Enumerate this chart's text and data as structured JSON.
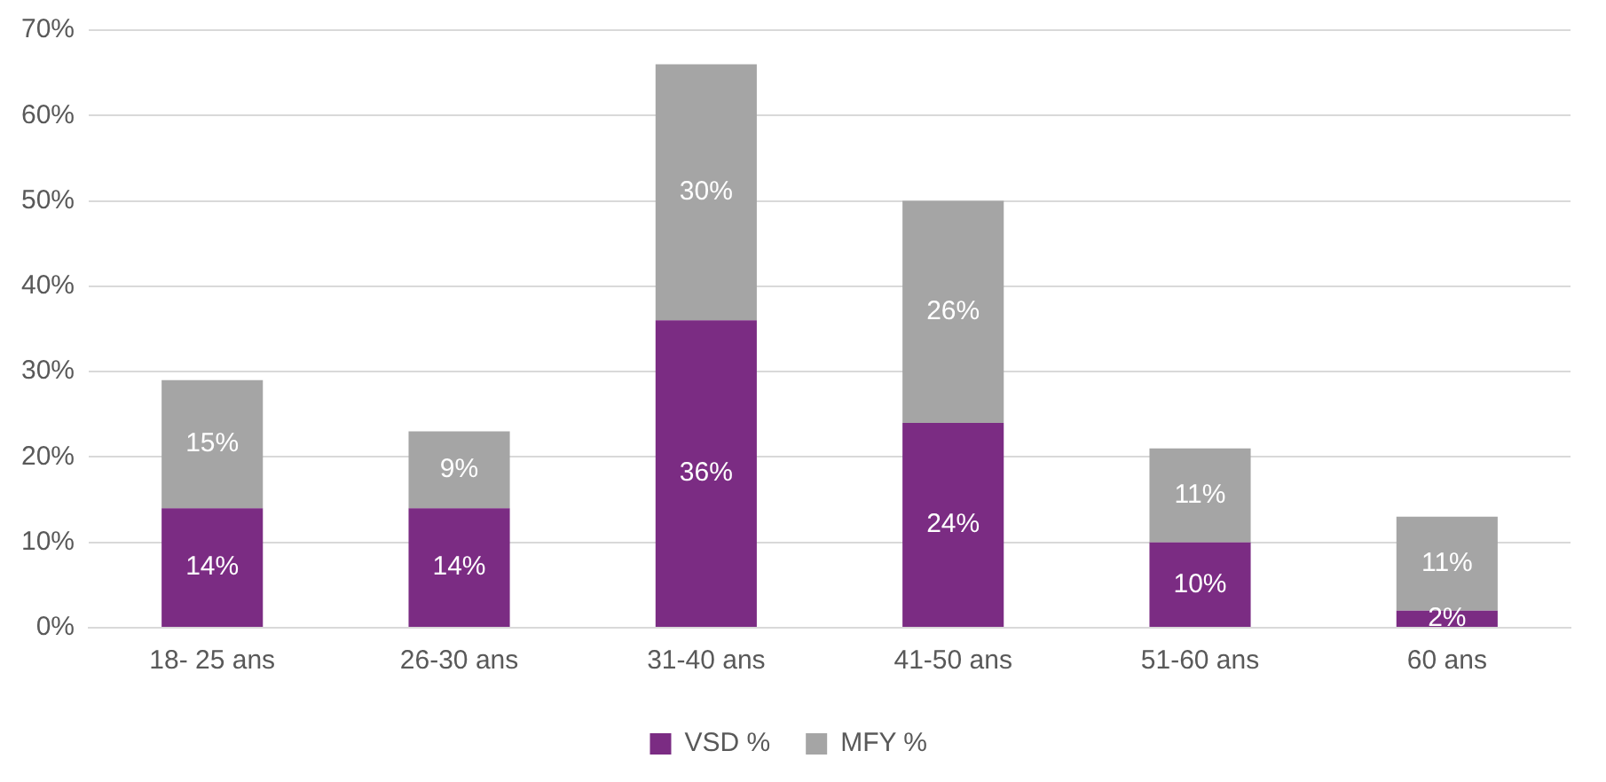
{
  "chart_data": {
    "type": "bar",
    "stacked": true,
    "categories": [
      "18- 25 ans",
      "26-30 ans",
      "31-40 ans",
      "41-50 ans",
      "51-60 ans",
      "60 ans"
    ],
    "series": [
      {
        "name": "VSD %",
        "color": "#7b2c83",
        "values": [
          14,
          14,
          36,
          24,
          10,
          2
        ],
        "value_labels": [
          "14%",
          "14%",
          "36%",
          "24%",
          "10%",
          "2%"
        ]
      },
      {
        "name": "MFY %",
        "color": "#a5a5a5",
        "values": [
          15,
          9,
          30,
          26,
          11,
          11
        ],
        "value_labels": [
          "15%",
          "9%",
          "30%",
          "26%",
          "11%",
          "11%"
        ]
      }
    ],
    "ylim": [
      0,
      70
    ],
    "yticks": [
      {
        "value": 0,
        "label": "0%"
      },
      {
        "value": 10,
        "label": "10%"
      },
      {
        "value": 20,
        "label": "20%"
      },
      {
        "value": 30,
        "label": "30%"
      },
      {
        "value": 40,
        "label": "40%"
      },
      {
        "value": 50,
        "label": "50%"
      },
      {
        "value": 60,
        "label": "60%"
      },
      {
        "value": 70,
        "label": "70%"
      }
    ],
    "grid": "y",
    "legend": "bottom"
  }
}
